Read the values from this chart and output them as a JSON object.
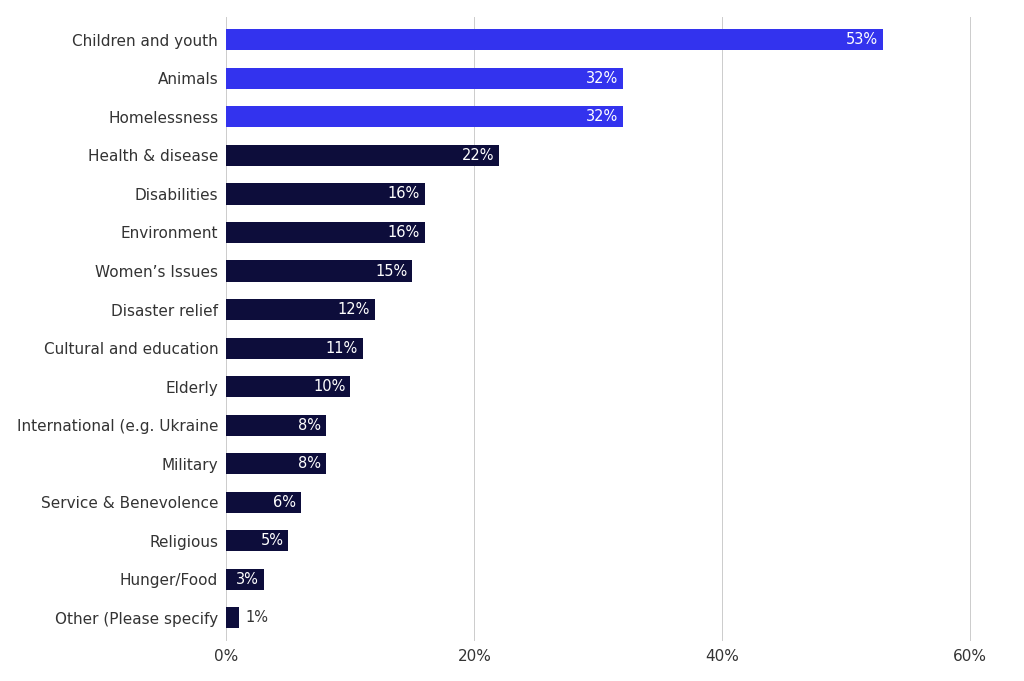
{
  "categories": [
    "Other (Please specify",
    "Hunger/Food",
    "Religious",
    "Service & Benevolence",
    "Military",
    "International (e.g. Ukraine",
    "Elderly",
    "Cultural and education",
    "Disaster relief",
    "Women’s Issues",
    "Environment",
    "Disabilities",
    "Health & disease",
    "Homelessness",
    "Animals",
    "Children and youth"
  ],
  "values": [
    1,
    3,
    5,
    6,
    8,
    8,
    10,
    11,
    12,
    15,
    16,
    16,
    22,
    32,
    32,
    53
  ],
  "bar_colors": [
    "#0d0d3b",
    "#0d0d3b",
    "#0d0d3b",
    "#0d0d3b",
    "#0d0d3b",
    "#0d0d3b",
    "#0d0d3b",
    "#0d0d3b",
    "#0d0d3b",
    "#0d0d3b",
    "#0d0d3b",
    "#0d0d3b",
    "#0d0d3b",
    "#3333ee",
    "#3333ee",
    "#3333ee"
  ],
  "background_color": "#ffffff",
  "label_color": "#ffffff",
  "label_outside_color": "#333333",
  "tick_label_color": "#333333",
  "xlim": [
    0,
    63
  ],
  "xtick_values": [
    0,
    20,
    40,
    60
  ],
  "xtick_labels": [
    "0%",
    "20%",
    "40%",
    "60%"
  ],
  "bar_height": 0.55,
  "label_fontsize": 10.5,
  "tick_fontsize": 11,
  "figsize": [
    10.24,
    6.81
  ],
  "dpi": 100,
  "small_bar_threshold": 2
}
